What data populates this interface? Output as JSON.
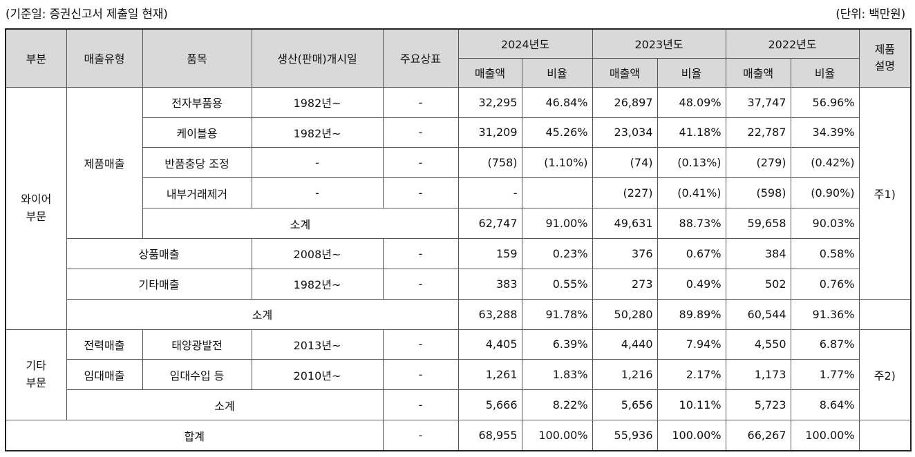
{
  "caption": {
    "left": "(기준일: 증권신고서 제출일 현재)",
    "right": "(단위: 백만원)"
  },
  "headers": {
    "segment": "부분",
    "sales_type": "매출유형",
    "item": "품목",
    "start_date": "생산(판매)개시일",
    "brand": "주요상표",
    "years": [
      "2024년도",
      "2023년도",
      "2022년도"
    ],
    "sales": "매출액",
    "ratio": "비율",
    "desc_line1": "제품",
    "desc_line2": "설명"
  },
  "segments": {
    "wire_line1": "와이어",
    "wire_line2": "부문",
    "other_line1": "기타",
    "other_line2": "부문"
  },
  "groups": {
    "product_sales": "제품매출",
    "power_sales": "전력매출",
    "rent_sales": "임대매출"
  },
  "notes": {
    "wire": "주1)",
    "other": "주2)"
  },
  "rows": [
    {
      "item": "전자부품용",
      "start": "1982년~",
      "brand": "-",
      "v": [
        "32,295",
        "46.84%",
        "26,897",
        "48.09%",
        "37,747",
        "56.96%"
      ]
    },
    {
      "item": "케이블용",
      "start": "1982년~",
      "brand": "-",
      "v": [
        "31,209",
        "45.26%",
        "23,034",
        "41.18%",
        "22,787",
        "34.39%"
      ]
    },
    {
      "item": "반품충당 조정",
      "start": "-",
      "brand": "-",
      "v": [
        "(758)",
        "(1.10%)",
        "(74)",
        "(0.13%)",
        "(279)",
        "(0.42%)"
      ]
    },
    {
      "item": "내부거래제거",
      "start": "-",
      "brand": "-",
      "v": [
        "-",
        "",
        "(227)",
        "(0.41%)",
        "(598)",
        "(0.90%)"
      ]
    },
    {
      "item": "소계",
      "v": [
        "62,747",
        "91.00%",
        "49,631",
        "88.73%",
        "59,658",
        "90.03%"
      ]
    },
    {
      "item": "상품매출",
      "start": "2008년~",
      "brand": "-",
      "v": [
        "159",
        "0.23%",
        "376",
        "0.67%",
        "384",
        "0.58%"
      ]
    },
    {
      "item": "기타매출",
      "start": "1982년~",
      "brand": "-",
      "v": [
        "383",
        "0.55%",
        "273",
        "0.49%",
        "502",
        "0.76%"
      ]
    },
    {
      "item": "소계",
      "v": [
        "63,288",
        "91.78%",
        "50,280",
        "89.89%",
        "60,544",
        "91.36%"
      ]
    },
    {
      "item": "태양광발전",
      "start": "2013년~",
      "brand": "-",
      "v": [
        "4,405",
        "6.39%",
        "4,440",
        "7.94%",
        "4,550",
        "6.87%"
      ]
    },
    {
      "item": "임대수입 등",
      "start": "2010년~",
      "brand": "-",
      "v": [
        "1,261",
        "1.83%",
        "1,216",
        "2.17%",
        "1,173",
        "1.77%"
      ]
    },
    {
      "item": "소계",
      "brand": "-",
      "v": [
        "5,666",
        "8.22%",
        "5,656",
        "10.11%",
        "5,723",
        "8.64%"
      ]
    },
    {
      "item": "합계",
      "brand": "-",
      "v": [
        "68,955",
        "100.00%",
        "55,936",
        "100.00%",
        "66,267",
        "100.00%"
      ]
    }
  ]
}
